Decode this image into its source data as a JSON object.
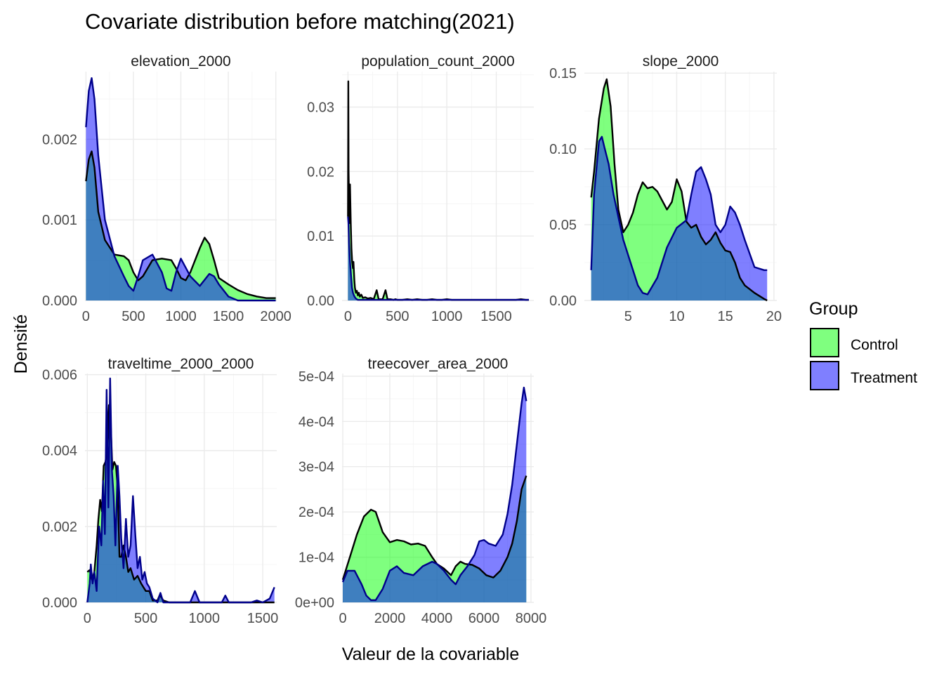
{
  "title": "Covariate distribution before matching(2021)",
  "xlabel": "Valeur de la covariable",
  "ylabel": "Densité",
  "legend": {
    "title": "Group",
    "placement": "right",
    "entries": [
      {
        "label": "Control",
        "fill": "#00ff00",
        "line": "#000000"
      },
      {
        "label": "Treatment",
        "fill": "#0000ff",
        "line": "#00008b"
      }
    ]
  },
  "colors": {
    "control_fill": "#00ff00",
    "treatment_fill": "#0000ff",
    "overlap": "#3d7dbd",
    "control_line": "#000000",
    "treatment_line": "#00008b"
  },
  "chart_data": [
    {
      "type": "area",
      "facet": "elevation_2000",
      "xlim": [
        -10,
        2010
      ],
      "ylim": [
        0,
        0.00284
      ],
      "xticks": [
        0,
        500,
        1000,
        1500,
        2000
      ],
      "xtick_labels": [
        "0",
        "500",
        "1000",
        "1500",
        "2000"
      ],
      "yticks": [
        0,
        0.001,
        0.002
      ],
      "ytick_labels": [
        "0.000",
        "0.001",
        "0.002"
      ],
      "series": [
        {
          "name": "Control",
          "x": [
            0,
            30,
            60,
            90,
            130,
            200,
            300,
            400,
            450,
            500,
            550,
            600,
            700,
            800,
            900,
            950,
            1000,
            1050,
            1100,
            1200,
            1250,
            1300,
            1350,
            1400,
            1500,
            1600,
            1700,
            1800,
            1900,
            2000
          ],
          "y": [
            0.00148,
            0.00175,
            0.00185,
            0.00165,
            0.0011,
            0.00075,
            0.00057,
            0.00055,
            0.0005,
            0.00035,
            0.00025,
            0.0003,
            0.0005,
            0.00052,
            0.0005,
            0.0004,
            0.00028,
            0.00025,
            0.00035,
            0.00065,
            0.00078,
            0.0007,
            0.0005,
            0.00028,
            0.0002,
            0.00013,
            8e-05,
            5e-05,
            3e-05,
            3e-05
          ]
        },
        {
          "name": "Treatment",
          "x": [
            0,
            30,
            60,
            90,
            130,
            200,
            300,
            400,
            450,
            500,
            550,
            600,
            700,
            800,
            850,
            900,
            950,
            1000,
            1100,
            1200,
            1300,
            1350,
            1400,
            1500,
            1600,
            1700,
            1800,
            1900,
            2000
          ],
          "y": [
            0.00215,
            0.0026,
            0.00276,
            0.0025,
            0.0018,
            0.001,
            0.00055,
            0.0003,
            0.00018,
            0.00012,
            0.0003,
            0.0005,
            0.00057,
            0.00035,
            0.00015,
            0.00012,
            0.00035,
            0.00052,
            0.0003,
            0.00018,
            0.00033,
            0.0003,
            0.0002,
            5e-05,
            0,
            0,
            0,
            0,
            0
          ]
        }
      ]
    },
    {
      "type": "area",
      "facet": "population_count_2000",
      "xlim": [
        -60,
        1880
      ],
      "ylim": [
        0,
        0.0355
      ],
      "xticks": [
        0,
        500,
        1000,
        1500
      ],
      "xtick_labels": [
        "0",
        "500",
        "1000",
        "1500"
      ],
      "yticks": [
        0,
        0.01,
        0.02,
        0.03
      ],
      "ytick_labels": [
        "0.00",
        "0.01",
        "0.02",
        "0.03"
      ],
      "series": [
        {
          "name": "Control",
          "x": [
            0,
            3,
            6,
            10,
            15,
            20,
            28,
            35,
            42,
            50,
            55,
            60,
            65,
            70,
            80,
            90,
            100,
            110,
            120,
            135,
            150,
            175,
            200,
            230,
            260,
            290,
            310,
            330,
            350,
            380,
            400,
            430,
            460,
            480,
            500,
            550,
            600,
            650,
            700,
            750,
            800,
            850,
            900,
            950,
            1000,
            1050,
            1100,
            1200,
            1300,
            1400,
            1500,
            1600,
            1700,
            1750,
            1800,
            1830
          ],
          "y": [
            0.013,
            0.034,
            0.02,
            0.016,
            0.012,
            0.018,
            0.012,
            0.008,
            0.006,
            0.005,
            0.006,
            0.0045,
            0.003,
            0.002,
            0.0012,
            0.0015,
            0.0008,
            0.0012,
            0.0006,
            0.0009,
            0.0004,
            0.0005,
            0.0003,
            0.0004,
            0.0002,
            0.0016,
            0.0002,
            0.0002,
            0.0002,
            0.0016,
            0.0002,
            0.0002,
            0.0001,
            0.0002,
            0.0001,
            0.0001,
            0.0002,
            0.0001,
            0.0002,
            0.0001,
            0.0001,
            0.0002,
            0.0001,
            0.0001,
            0.0002,
            0.0001,
            0.0001,
            0.0001,
            0.0001,
            0.0001,
            0.0001,
            0.0001,
            0.0001,
            0.0002,
            0.0001,
            0.0001
          ]
        },
        {
          "name": "Treatment",
          "x": [
            0,
            5,
            10,
            20,
            30,
            40,
            50,
            60,
            70,
            80,
            90,
            100,
            120,
            150,
            200,
            250,
            300,
            400,
            500,
            600,
            700,
            800,
            900,
            1000,
            1100,
            1200,
            1300,
            1400,
            1500,
            1600,
            1700,
            1800,
            1830
          ],
          "y": [
            0.013,
            0.012,
            0.009,
            0.006,
            0.004,
            0.002,
            0.0012,
            0.0008,
            0.0005,
            0.0003,
            0.0002,
            0.0001,
            0.0001,
            0.0001,
            0.0001,
            0.0001,
            0.0001,
            0.0001,
            0.0001,
            0.0001,
            0.0001,
            0.0001,
            0.0001,
            0.0001,
            0.0001,
            0.0001,
            0.0001,
            0.0001,
            0.0001,
            0.0001,
            0.0001,
            0.0001,
            0.0001
          ]
        }
      ]
    },
    {
      "type": "area",
      "facet": "slope_2000",
      "xlim": [
        0.5,
        20.3
      ],
      "ylim": [
        0,
        0.151
      ],
      "xticks": [
        5,
        10,
        15,
        20
      ],
      "xtick_labels": [
        "5",
        "10",
        "15",
        "20"
      ],
      "yticks": [
        0,
        0.05,
        0.1,
        0.15
      ],
      "ytick_labels": [
        "0.00",
        "0.05",
        "0.10",
        "0.15"
      ],
      "series": [
        {
          "name": "Control",
          "x": [
            1.2,
            1.5,
            2,
            2.5,
            2.8,
            3.2,
            3.6,
            4,
            4.5,
            5,
            5.5,
            6,
            6.5,
            7,
            7.5,
            8,
            9,
            9.5,
            10,
            10.5,
            11,
            11.5,
            12,
            12.5,
            13,
            13.5,
            14,
            14.5,
            15,
            15.5,
            16,
            16.5,
            17,
            18,
            19,
            19.3
          ],
          "y": [
            0.068,
            0.085,
            0.12,
            0.14,
            0.146,
            0.128,
            0.09,
            0.06,
            0.045,
            0.05,
            0.058,
            0.07,
            0.078,
            0.074,
            0.075,
            0.072,
            0.06,
            0.065,
            0.08,
            0.072,
            0.052,
            0.048,
            0.05,
            0.042,
            0.037,
            0.04,
            0.045,
            0.038,
            0.033,
            0.032,
            0.025,
            0.015,
            0.01,
            0.005,
            0.001,
            0
          ]
        },
        {
          "name": "Treatment",
          "x": [
            1.2,
            1.5,
            2,
            2.3,
            2.6,
            3,
            3.5,
            4,
            4.5,
            5,
            5.5,
            6,
            6.5,
            7,
            8,
            9,
            10,
            11,
            11.5,
            12,
            12.5,
            13,
            13.5,
            14,
            14.5,
            15,
            15.5,
            16,
            16.5,
            17,
            18,
            19,
            19.3
          ],
          "y": [
            0.02,
            0.07,
            0.105,
            0.108,
            0.1,
            0.09,
            0.07,
            0.055,
            0.04,
            0.03,
            0.02,
            0.01,
            0.005,
            0.004,
            0.015,
            0.035,
            0.048,
            0.053,
            0.07,
            0.085,
            0.088,
            0.08,
            0.07,
            0.05,
            0.045,
            0.05,
            0.062,
            0.058,
            0.05,
            0.04,
            0.022,
            0.02,
            0.02
          ]
        }
      ]
    },
    {
      "type": "area",
      "facet": "traveltime_2000_2000",
      "xlim": [
        -20,
        1620
      ],
      "ylim": [
        0,
        0.00603
      ],
      "xticks": [
        0,
        500,
        1000,
        1500
      ],
      "xtick_labels": [
        "0",
        "500",
        "1000",
        "1500"
      ],
      "yticks": [
        0,
        0.002,
        0.004,
        0.006
      ],
      "ytick_labels": [
        "0.000",
        "0.002",
        "0.004",
        "0.006"
      ],
      "series": [
        {
          "name": "Control",
          "x": [
            0,
            20,
            40,
            60,
            80,
            95,
            110,
            125,
            140,
            155,
            170,
            185,
            200,
            215,
            230,
            245,
            260,
            275,
            290,
            310,
            330,
            350,
            370,
            400,
            430,
            460,
            480,
            500,
            530,
            560,
            600,
            620,
            650,
            700,
            800,
            900,
            1000,
            1100,
            1200,
            1300,
            1400,
            1500,
            1600
          ],
          "y": [
            0.0008,
            0.00085,
            0.0006,
            0.0008,
            0.0015,
            0.0022,
            0.0027,
            0.0024,
            0.0036,
            0.0037,
            0.004,
            0.0052,
            0.0047,
            0.0035,
            0.0037,
            0.0036,
            0.003,
            0.0012,
            0.0012,
            0.0015,
            0.0012,
            0.0008,
            0.0009,
            0.0006,
            0.0007,
            0.0005,
            0.0004,
            0.0003,
            0.0003,
            5e-05,
            5e-05,
            0.0002,
            5e-05,
            0,
            0,
            0,
            0,
            0,
            0,
            0,
            0,
            0,
            0
          ]
        },
        {
          "name": "Treatment",
          "x": [
            0,
            20,
            30,
            45,
            60,
            80,
            100,
            120,
            135,
            150,
            165,
            180,
            195,
            210,
            225,
            240,
            260,
            275,
            290,
            310,
            330,
            350,
            370,
            390,
            410,
            430,
            450,
            470,
            490,
            510,
            530,
            560,
            600,
            625,
            650,
            700,
            800,
            880,
            920,
            960,
            1000,
            1100,
            1150,
            1180,
            1210,
            1300,
            1400,
            1450,
            1500,
            1560,
            1600
          ],
          "y": [
            0,
            0.0005,
            0.001,
            0.0005,
            0.0008,
            0.0003,
            0.002,
            0.0015,
            0.0032,
            0.0018,
            0.0056,
            0.0025,
            0.0059,
            0.0035,
            0.0028,
            0.0015,
            0.0036,
            0.0028,
            0.0017,
            0.0009,
            0.0022,
            0.0012,
            0.0015,
            0.0028,
            0.0018,
            0.0009,
            0.0012,
            0.0006,
            0.0008,
            0.0005,
            0.0004,
            0.0001,
            0,
            0.00025,
            0,
            0,
            0,
            0,
            0.0003,
            0,
            0,
            0,
            0,
            0.00018,
            0,
            0,
            0,
            5e-05,
            0,
            0.0001,
            0.0004
          ]
        }
      ]
    },
    {
      "type": "area",
      "facet": "treecover_area_2000",
      "xlim": [
        -30,
        8120
      ],
      "ylim": [
        0,
        0.000506
      ],
      "xticks": [
        0,
        2000,
        4000,
        6000,
        8000
      ],
      "xtick_labels": [
        "0",
        "2000",
        "4000",
        "6000",
        "8000"
      ],
      "yticks": [
        0,
        0.0001,
        0.0002,
        0.0003,
        0.0004,
        0.0005
      ],
      "ytick_labels": [
        "0e+00",
        "1e-04",
        "2e-04",
        "3e-04",
        "4e-04",
        "5e-04"
      ],
      "series": [
        {
          "name": "Control",
          "x": [
            0,
            300,
            600,
            900,
            1200,
            1400,
            1700,
            2000,
            2300,
            2600,
            2900,
            3200,
            3500,
            3800,
            4000,
            4300,
            4600,
            4800,
            5000,
            5200,
            5500,
            5800,
            6100,
            6400,
            6700,
            7000,
            7200,
            7400,
            7600,
            7800
          ],
          "y": [
            5e-05,
            0.0001,
            0.00015,
            0.00019,
            0.000205,
            0.0002,
            0.000155,
            0.000133,
            0.000138,
            0.000135,
            0.000128,
            0.00013,
            0.000125,
            0.0001,
            8.5e-05,
            7.5e-05,
            6e-05,
            8e-05,
            9e-05,
            8.5e-05,
            8.3e-05,
            7.5e-05,
            6e-05,
            5.5e-05,
            7e-05,
            0.0001,
            0.00013,
            0.00018,
            0.00025,
            0.00028
          ]
        },
        {
          "name": "Treatment",
          "x": [
            0,
            200,
            500,
            800,
            1000,
            1200,
            1400,
            1700,
            2000,
            2300,
            2600,
            3000,
            3400,
            3800,
            4000,
            4300,
            4600,
            4800,
            5000,
            5300,
            5600,
            5800,
            6000,
            6200,
            6500,
            6800,
            7000,
            7200,
            7400,
            7600,
            7700,
            7800
          ],
          "y": [
            4.5e-05,
            7e-05,
            7e-05,
            4e-05,
            1.5e-05,
            5e-06,
            5e-06,
            3e-05,
            7e-05,
            8e-05,
            6.5e-05,
            6e-05,
            8e-05,
            9e-05,
            8.5e-05,
            7e-05,
            5e-05,
            4e-05,
            6e-05,
            8e-05,
            0.000105,
            0.000135,
            0.000138,
            0.00013,
            0.000125,
            0.00015,
            0.000195,
            0.00026,
            0.00035,
            0.00044,
            0.000475,
            0.000445
          ]
        }
      ]
    }
  ]
}
